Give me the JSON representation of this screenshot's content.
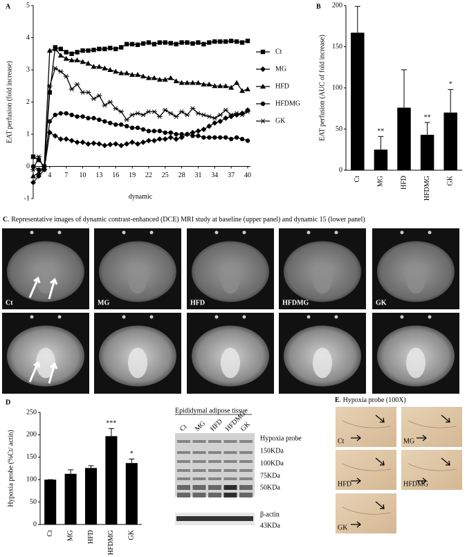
{
  "chart_data": [
    {
      "type": "line",
      "panel_label": "A",
      "xlabel": "dynamic",
      "ylabel": "EAT perfusion (fold increase)",
      "x": [
        1,
        2,
        3,
        4,
        5,
        6,
        7,
        8,
        9,
        10,
        11,
        12,
        13,
        14,
        15,
        16,
        17,
        18,
        19,
        20,
        21,
        22,
        23,
        24,
        25,
        26,
        27,
        28,
        29,
        30,
        31,
        32,
        33,
        34,
        35,
        36,
        37,
        38,
        39,
        40
      ],
      "xlim": [
        1,
        40
      ],
      "xticks": [
        1,
        4,
        7,
        10,
        13,
        16,
        19,
        22,
        25,
        28,
        31,
        34,
        37,
        40
      ],
      "ylim": [
        -1,
        5
      ],
      "yticks": [
        -1,
        0,
        1,
        2,
        3,
        4,
        5
      ],
      "color": "#000000",
      "series": [
        {
          "name": "Ct",
          "marker": "square",
          "values": [
            0.3,
            0.2,
            0.0,
            2.3,
            3.7,
            3.65,
            3.55,
            3.5,
            3.55,
            3.6,
            3.6,
            3.62,
            3.65,
            3.65,
            3.68,
            3.65,
            3.7,
            3.8,
            3.8,
            3.78,
            3.82,
            3.85,
            3.8,
            3.85,
            3.85,
            3.83,
            3.8,
            3.85,
            3.85,
            3.82,
            3.85,
            3.8,
            3.85,
            3.88,
            3.88,
            3.88,
            3.9,
            3.88,
            3.85,
            3.9
          ]
        },
        {
          "name": "MG",
          "marker": "diamond",
          "values": [
            -0.5,
            -0.3,
            -0.1,
            1.05,
            0.95,
            0.85,
            0.85,
            0.8,
            0.75,
            0.75,
            0.7,
            0.72,
            0.7,
            0.65,
            0.68,
            0.7,
            0.65,
            0.7,
            0.75,
            0.7,
            0.75,
            0.8,
            0.8,
            0.85,
            0.85,
            0.9,
            0.85,
            0.9,
            1.0,
            1.05,
            1.1,
            1.15,
            1.25,
            1.35,
            1.4,
            1.5,
            1.55,
            1.6,
            1.65,
            1.75
          ]
        },
        {
          "name": "HFD",
          "marker": "triangle",
          "values": [
            -0.3,
            -0.2,
            -0.05,
            3.6,
            3.65,
            3.45,
            3.35,
            3.3,
            3.3,
            3.25,
            3.2,
            3.1,
            3.1,
            3.05,
            3.0,
            2.95,
            2.9,
            2.9,
            2.85,
            2.85,
            2.8,
            2.75,
            2.75,
            2.7,
            2.7,
            2.75,
            2.65,
            2.6,
            2.6,
            2.6,
            2.6,
            2.55,
            2.55,
            2.5,
            2.5,
            2.5,
            2.45,
            2.6,
            2.35,
            2.4
          ]
        },
        {
          "name": "HFDMG",
          "marker": "circle",
          "values": [
            0.0,
            -0.1,
            -0.05,
            1.4,
            1.6,
            1.65,
            1.65,
            1.6,
            1.55,
            1.55,
            1.5,
            1.5,
            1.45,
            1.4,
            1.35,
            1.3,
            1.3,
            1.25,
            1.2,
            1.2,
            1.15,
            1.1,
            1.1,
            1.1,
            1.05,
            1.05,
            1.0,
            1.0,
            1.0,
            0.95,
            0.95,
            0.9,
            0.9,
            0.9,
            0.9,
            0.9,
            0.85,
            0.9,
            0.85,
            0.8
          ]
        },
        {
          "name": "GK",
          "marker": "star",
          "values": [
            -0.1,
            0.3,
            -0.1,
            2.5,
            3.05,
            2.95,
            2.8,
            2.4,
            2.55,
            2.3,
            2.3,
            2.1,
            2.2,
            1.9,
            2.0,
            1.8,
            1.7,
            1.45,
            1.6,
            1.65,
            1.6,
            1.7,
            1.7,
            1.55,
            1.75,
            1.65,
            1.55,
            1.7,
            1.6,
            1.8,
            1.65,
            1.6,
            1.55,
            1.5,
            1.6,
            1.75,
            1.6,
            1.65,
            1.6,
            1.7
          ]
        }
      ]
    },
    {
      "type": "bar",
      "panel_label": "B",
      "ylabel": "EAT perfusion (AUC of fold increase)",
      "categories": [
        "Ct",
        "MG",
        "HFD",
        "HFDMG",
        "GK"
      ],
      "values": [
        167,
        25,
        76,
        43,
        70
      ],
      "errors": [
        32,
        16,
        46,
        15,
        28
      ],
      "significance": [
        null,
        "**",
        null,
        "**",
        "*"
      ],
      "color": "#000000",
      "ylim": [
        0,
        200
      ],
      "yticks": [
        0,
        50,
        100,
        150,
        200
      ]
    },
    {
      "type": "bar",
      "panel_label": "D",
      "ylabel": "Hypoxia probe (%Ct/ actin)",
      "categories": [
        "Ct",
        "MG",
        "HFD",
        "HFDMG",
        "GK"
      ],
      "values": [
        100,
        113,
        126,
        197,
        137
      ],
      "errors": [
        0,
        9,
        5,
        17,
        9
      ],
      "significance": [
        null,
        null,
        null,
        "***",
        "*"
      ],
      "color": "#000000",
      "ylim": [
        0,
        250
      ],
      "yticks": [
        0,
        50,
        100,
        150,
        200,
        250
      ]
    }
  ],
  "panel_c": {
    "label": "C",
    "caption": ". Representative images of dynamic contrast-enhanced (DCE) MRI study at baseline (upper panel) and dynamic 15 (lower panel)",
    "groups": [
      "Ct",
      "MG",
      "HFD",
      "HFDMG",
      "GK"
    ]
  },
  "western_blot": {
    "title": "Epididymal adipose tissue",
    "lanes": [
      "Ct",
      "MG",
      "HFD",
      "HFDMG",
      "GK"
    ],
    "labels": [
      "Hypoxia probe",
      "150KDa",
      "100KDa",
      "75KDa",
      "50KDa",
      "β-actin",
      "43KDa"
    ]
  },
  "panel_e": {
    "label": "E",
    "title": ". Hypoxia probe (100X)",
    "images": [
      "Ct",
      "MG",
      "HFD",
      "HFDMG",
      "GK"
    ]
  }
}
